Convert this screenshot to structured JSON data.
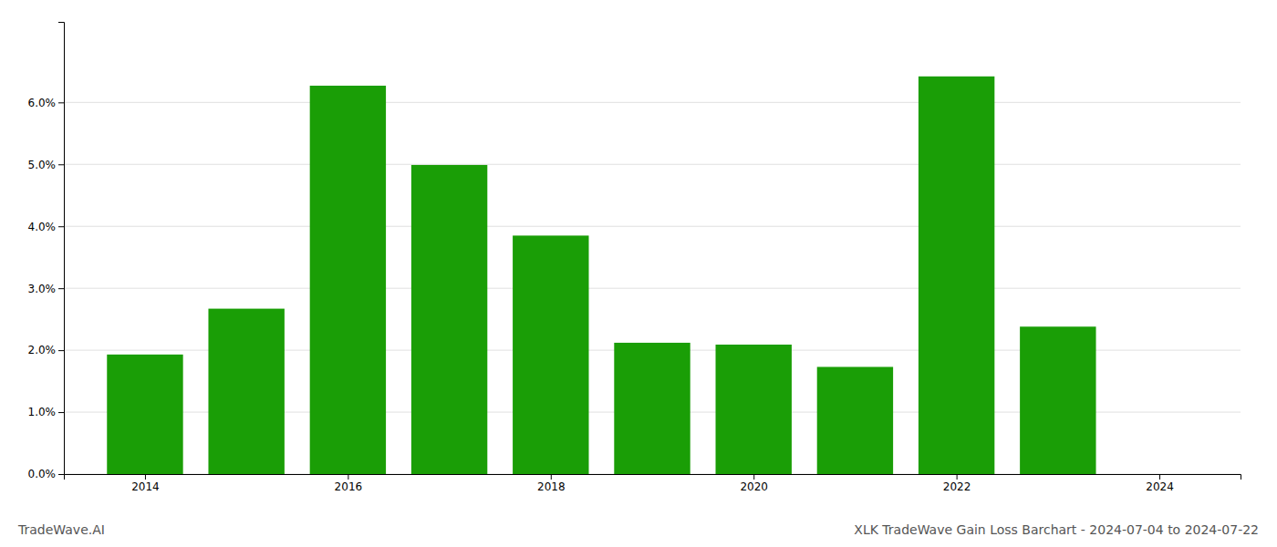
{
  "chart_data": {
    "type": "bar",
    "title": "XLK TradeWave Gain Loss Barchart - 2024-07-04 to 2024-07-22",
    "annotations": [
      "TradeWave.AI"
    ],
    "x": [
      2014,
      2015,
      2016,
      2017,
      2018,
      2019,
      2020,
      2021,
      2022,
      2023
    ],
    "values": [
      0.0193,
      0.0267,
      0.0627,
      0.0499,
      0.0385,
      0.0212,
      0.0209,
      0.0173,
      0.0642,
      0.0238
    ],
    "color": "#1a9e06",
    "xlim": [
      2013.2,
      2024.8
    ],
    "xticks": [
      2014,
      2016,
      2018,
      2020,
      2022,
      2024
    ],
    "ylim": [
      0,
      0.073
    ],
    "yticks": [
      {
        "value": 0.0,
        "label": "0.0%"
      },
      {
        "value": 0.01,
        "label": "1.0%"
      },
      {
        "value": 0.02,
        "label": "2.0%"
      },
      {
        "value": 0.03,
        "label": "3.0%"
      },
      {
        "value": 0.04,
        "label": "4.0%"
      },
      {
        "value": 0.05,
        "label": "5.0%"
      },
      {
        "value": 0.06,
        "label": "6.0%"
      }
    ],
    "grid": true
  }
}
